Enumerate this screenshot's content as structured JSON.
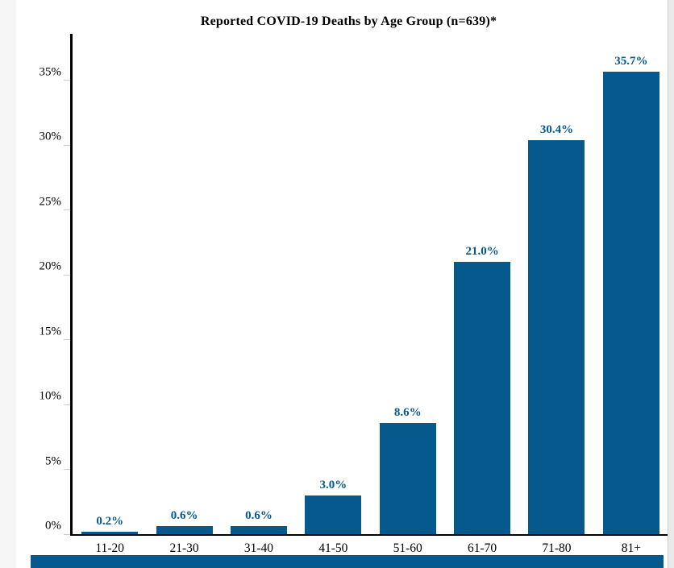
{
  "page": {
    "left_strip_color": "#f6f6f6",
    "scrollbar_track_color": "#eaeaea",
    "scrollbar_border_color": "#cfcfcf",
    "bottom_band_color": "#05598c"
  },
  "chart_data": {
    "type": "bar",
    "title": "Reported COVID-19 Deaths by Age Group (n=639)*",
    "categories": [
      "11-20",
      "21-30",
      "31-40",
      "41-50",
      "51-60",
      "61-70",
      "71-80",
      "81+"
    ],
    "values": [
      0.2,
      0.6,
      0.6,
      3.0,
      8.6,
      21.0,
      30.4,
      35.7
    ],
    "data_labels": [
      "0.2%",
      "0.6%",
      "0.6%",
      "3.0%",
      "8.6%",
      "21.0%",
      "30.4%",
      "35.7%"
    ],
    "y_tick_values": [
      0,
      5,
      10,
      15,
      20,
      25,
      30,
      35
    ],
    "y_tick_labels": [
      "0%",
      "5%",
      "10%",
      "15%",
      "20%",
      "25%",
      "30%",
      "35%"
    ],
    "ylim": [
      0,
      38.6
    ],
    "xlabel": "",
    "ylabel": "",
    "grid": false,
    "legend": false,
    "bar_color": "#05598c",
    "value_label_color": "#05598c",
    "axis_color": "#000000",
    "tick_color": "#c9c9c9"
  }
}
